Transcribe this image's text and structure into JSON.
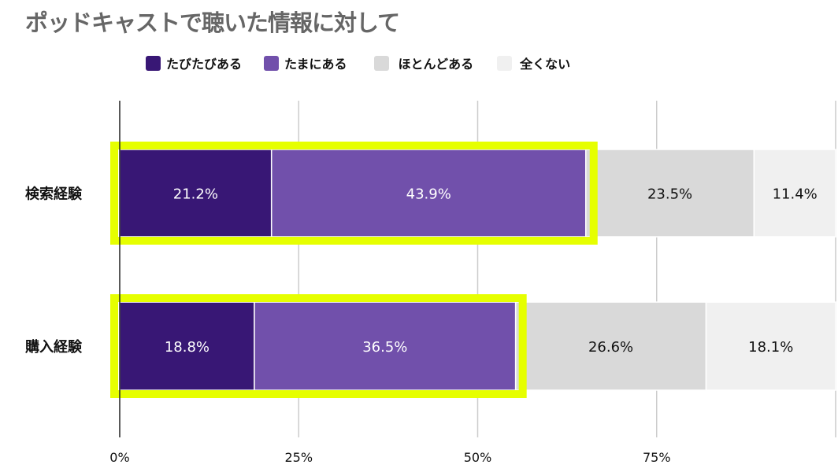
{
  "chart_data": {
    "type": "bar",
    "orientation": "horizontal",
    "stacked": true,
    "title": "ポッドキャストで聴いた情報に対して",
    "categories": [
      "検索経験",
      "購入経験"
    ],
    "series": [
      {
        "name": "たびたびある",
        "color": "#381775",
        "values": [
          21.2,
          18.8
        ]
      },
      {
        "name": "たまにある",
        "color": "#7150ab",
        "values": [
          43.9,
          36.5
        ]
      },
      {
        "name": "ほとんどある",
        "color": "#d9d9d9",
        "values": [
          23.5,
          26.6
        ]
      },
      {
        "name": "全くない",
        "color": "#f0f0f0",
        "values": [
          11.4,
          18.1
        ]
      }
    ],
    "xticks": [
      "0%",
      "25%",
      "50%",
      "75%"
    ],
    "xlim": [
      0,
      100
    ],
    "legend": "top",
    "grid": true,
    "highlight_color": "#e6ff00"
  }
}
